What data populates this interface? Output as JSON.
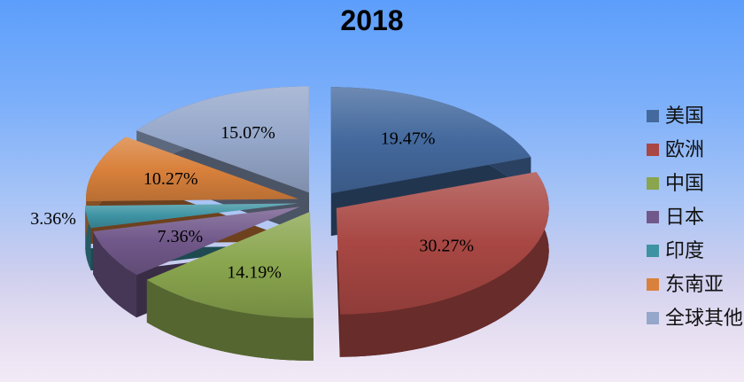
{
  "chart_data": {
    "type": "pie",
    "style": "3d-exploded",
    "title": "2018",
    "categories": [
      "美国",
      "欧洲",
      "中国",
      "日本",
      "印度",
      "东南亚",
      "全球其他"
    ],
    "values": [
      19.47,
      30.27,
      14.19,
      7.36,
      3.36,
      10.27,
      15.07
    ],
    "value_labels": [
      "19.47%",
      "30.27%",
      "14.19%",
      "7.36%",
      "3.36%",
      "10.27%",
      "15.07%"
    ],
    "colors": [
      "#44699D",
      "#A84743",
      "#89A54E",
      "#71588A",
      "#3E93A3",
      "#D9813C",
      "#95A7CA"
    ],
    "start_angle_deg": 0,
    "direction": "clockwise",
    "legend_position": "right",
    "legend_marker": "square",
    "data_labels": "percent",
    "background_top": "#5C9EFB",
    "background_bottom": "#F3EAF6"
  }
}
